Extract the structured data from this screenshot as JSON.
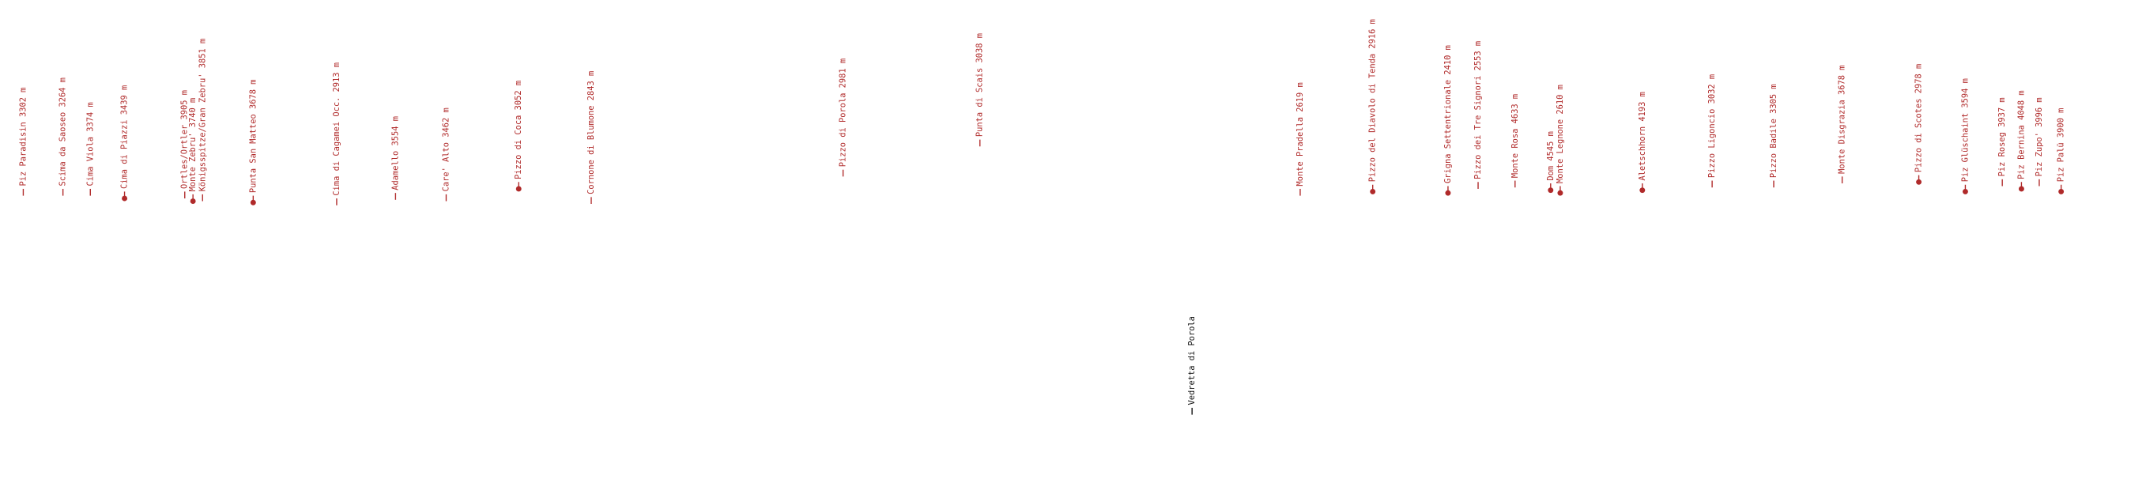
{
  "peaks": [
    "Piz Paradisin 3302 m",
    "Scima da Saoseo 3264 m",
    "Cima Viola 3374 m",
    "Cima di Piazzi 3439 m",
    "Ortles/Ortler 3905 m",
    "Monte Zebru' 3740 m",
    "Königsspitze/Gran Zebru' 3851 m",
    "Punta San Matteo 3678 m",
    "Cima di Cagamei Occ. 2913 m",
    "Adamello 3554 m",
    "Care' Alto 3462 m",
    "Pizzo di Coca 3052 m",
    "Cornone di Blumone 2843 m",
    "Pizzo di Porola 2981 m",
    "Punta di Scais 3038 m",
    "Monte Pradella 2619 m",
    "Pizzo del Diavolo di Tenda 2916 m",
    "Grigna Settentrionale 2410 m",
    "Pizzo dei Tre Signori 2553 m",
    "Monte Rosa 4633 m",
    "Dom 4545 m",
    "Monte Legnone 2610 m",
    "Aletschhorn 4193 m",
    "Pizzo Ligoncio 3032 m",
    "Pizzo Badile 3305 m",
    "Monte Disgrazia 3678 m",
    "Pizzo di Scotes 2978 m",
    "Piz Glüschaint 3594 m",
    "Piz Roseg 3937 m",
    "Piz Bernina 4048 m",
    "Piz Zupo' 3996 m",
    "Piz Palü 3900 m"
  ],
  "glacier": "Vedretta di Porola"
}
